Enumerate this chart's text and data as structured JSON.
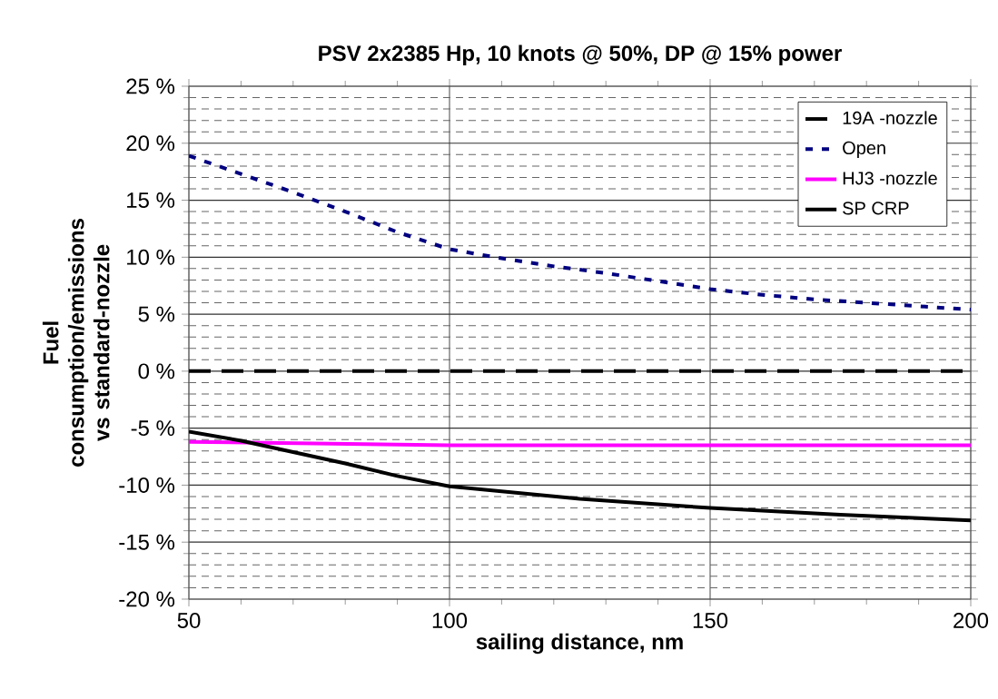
{
  "chart_data": {
    "type": "line",
    "title": "PSV 2x2385 Hp, 10 knots @ 50%, DP @ 15% power",
    "xlabel": "sailing distance, nm",
    "ylabel": "Fuel consumption/emissions vs standard-nozzle",
    "xlim": [
      50,
      200
    ],
    "xticks": [
      50,
      100,
      150,
      200
    ],
    "ylim": [
      -20,
      25
    ],
    "yticks": [
      {
        "value": -20,
        "label": "-20 %"
      },
      {
        "value": -15,
        "label": "-15 %"
      },
      {
        "value": -10,
        "label": "-10 %"
      },
      {
        "value": -5,
        "label": "-5 %"
      },
      {
        "value": 0,
        "label": "0 %"
      },
      {
        "value": 5,
        "label": "5 %"
      },
      {
        "value": 10,
        "label": "10 %"
      },
      {
        "value": 15,
        "label": "15 %"
      },
      {
        "value": 20,
        "label": "20 %"
      },
      {
        "value": 25,
        "label": "25 %"
      }
    ],
    "grid": true,
    "legend": "top right",
    "marker": "none",
    "series": [
      {
        "name": "19A -nozzle",
        "color": "#000000",
        "line_style": "dashed",
        "x": [
          50,
          200
        ],
        "values": [
          0,
          0
        ]
      },
      {
        "name": "Open",
        "color": "#000080",
        "line_style": "dotted",
        "x": [
          50,
          60,
          70,
          80,
          90,
          100,
          110,
          120,
          130,
          140,
          150,
          160,
          170,
          180,
          190,
          200
        ],
        "values": [
          18.9,
          17.3,
          15.7,
          14.0,
          12.2,
          10.7,
          9.9,
          9.2,
          8.6,
          7.9,
          7.2,
          6.7,
          6.3,
          6.0,
          5.7,
          5.4
        ]
      },
      {
        "name": "HJ3 -nozzle",
        "color": "#ff00ff",
        "line_style": "solid",
        "x": [
          50,
          100,
          200
        ],
        "values": [
          -6.2,
          -6.5,
          -6.5
        ]
      },
      {
        "name": "SP CRP",
        "color": "#000000",
        "line_style": "solid",
        "x": [
          50,
          60,
          70,
          80,
          90,
          100,
          125,
          150,
          175,
          200
        ],
        "values": [
          -5.3,
          -6.1,
          -7.1,
          -8.1,
          -9.2,
          -10.1,
          -11.2,
          -12.0,
          -12.6,
          -13.1
        ]
      }
    ]
  }
}
